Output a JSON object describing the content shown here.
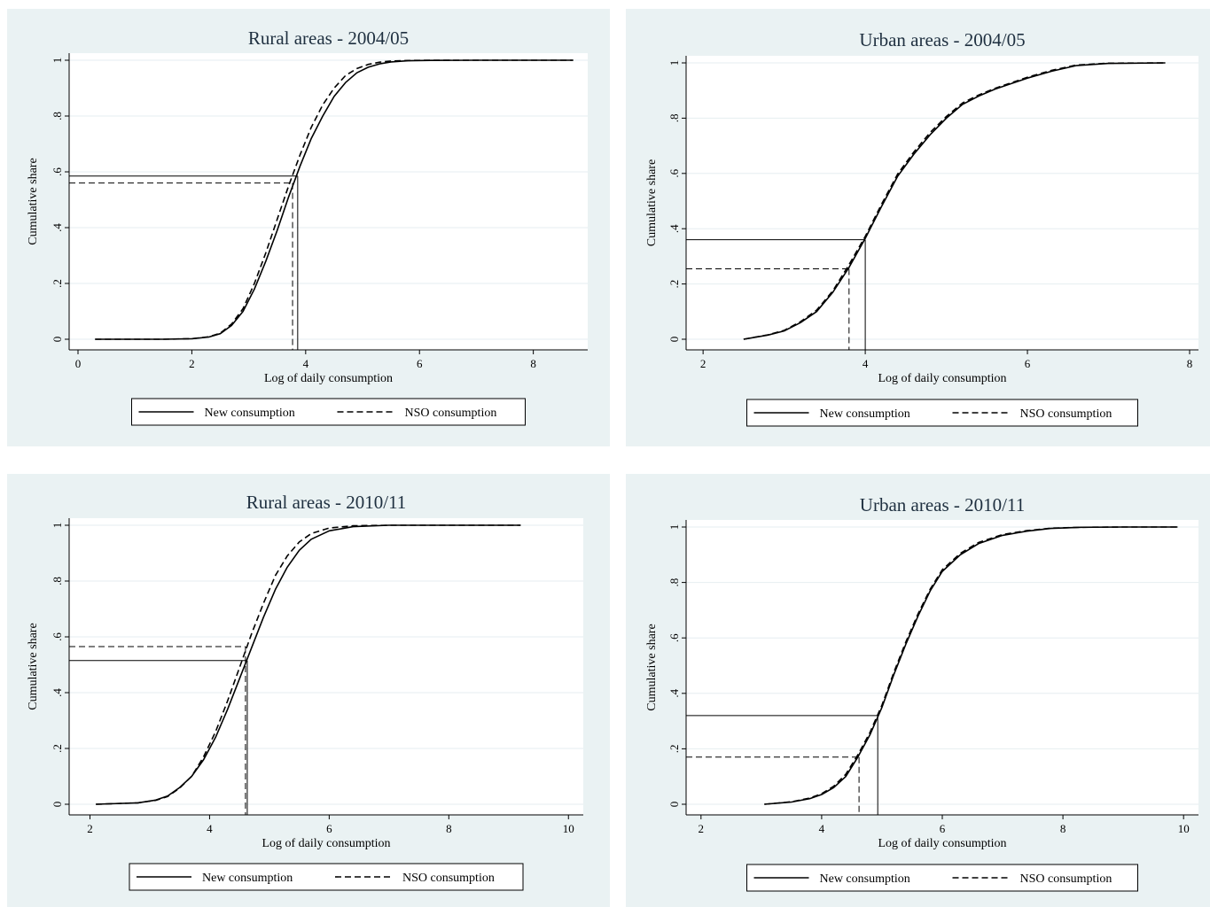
{
  "chart_data": [
    {
      "type": "line",
      "title": "Rural areas - 2004/05",
      "xlabel": "Log of daily consumption",
      "ylabel": "Cumulative share",
      "xlim": [
        0,
        8.8
      ],
      "ylim": [
        0,
        1
      ],
      "xticks": [
        0,
        2,
        4,
        6,
        8
      ],
      "xtick_labels": [
        "0",
        "2",
        "4",
        "6",
        "8"
      ],
      "yticks": [
        0,
        0.2,
        0.4,
        0.6,
        0.8,
        1
      ],
      "ytick_labels": [
        "0",
        ".2",
        ".4",
        ".6",
        ".8",
        "1"
      ],
      "grid": true,
      "legend_position": "bottom",
      "series": [
        {
          "name": "New consumption",
          "style": "solid",
          "x": [
            0.3,
            1.5,
            2.0,
            2.3,
            2.5,
            2.7,
            2.9,
            3.1,
            3.3,
            3.5,
            3.7,
            3.9,
            4.1,
            4.3,
            4.5,
            4.7,
            4.9,
            5.1,
            5.3,
            5.5,
            5.8,
            6.2,
            7.0,
            8.7
          ],
          "y": [
            0,
            0,
            0.002,
            0.008,
            0.02,
            0.05,
            0.1,
            0.18,
            0.28,
            0.39,
            0.51,
            0.62,
            0.72,
            0.8,
            0.87,
            0.92,
            0.955,
            0.975,
            0.987,
            0.994,
            0.998,
            0.9995,
            1,
            1
          ]
        },
        {
          "name": "NSO consumption",
          "style": "dashed",
          "x": [
            0.3,
            1.5,
            2.0,
            2.3,
            2.5,
            2.7,
            2.9,
            3.1,
            3.3,
            3.5,
            3.7,
            3.9,
            4.1,
            4.3,
            4.5,
            4.7,
            4.9,
            5.1,
            5.3,
            5.5,
            5.8,
            6.2,
            7.0,
            8.7
          ],
          "y": [
            0,
            0,
            0.002,
            0.009,
            0.022,
            0.055,
            0.11,
            0.2,
            0.31,
            0.43,
            0.55,
            0.66,
            0.76,
            0.84,
            0.9,
            0.945,
            0.97,
            0.985,
            0.993,
            0.997,
            0.999,
            1,
            1,
            1
          ]
        }
      ],
      "reference_lines": [
        {
          "series": "New consumption",
          "x": 3.86,
          "y": 0.585
        },
        {
          "series": "NSO consumption",
          "x": 3.77,
          "y": 0.56
        }
      ]
    },
    {
      "type": "line",
      "title": "Urban areas - 2004/05",
      "xlabel": "Log of daily consumption",
      "ylabel": "Cumulative share",
      "xlim": [
        1.9,
        8
      ],
      "ylim": [
        0,
        1
      ],
      "xticks": [
        2,
        4,
        6,
        8
      ],
      "xtick_labels": [
        "2",
        "4",
        "6",
        "8"
      ],
      "yticks": [
        0,
        0.2,
        0.4,
        0.6,
        0.8,
        1
      ],
      "ytick_labels": [
        "0",
        ".2",
        ".4",
        ".6",
        ".8",
        "1"
      ],
      "grid": true,
      "legend_position": "bottom",
      "series": [
        {
          "name": "New consumption",
          "style": "solid",
          "x": [
            2.5,
            2.8,
            3.0,
            3.2,
            3.4,
            3.6,
            3.8,
            4.0,
            4.2,
            4.4,
            4.6,
            4.8,
            5.0,
            5.2,
            5.4,
            5.6,
            5.8,
            6.0,
            6.3,
            6.6,
            7.0,
            7.7
          ],
          "y": [
            0,
            0.015,
            0.03,
            0.06,
            0.1,
            0.17,
            0.26,
            0.365,
            0.48,
            0.59,
            0.67,
            0.74,
            0.8,
            0.85,
            0.88,
            0.905,
            0.925,
            0.945,
            0.97,
            0.99,
            0.998,
            1
          ]
        },
        {
          "name": "NSO consumption",
          "style": "dashed",
          "x": [
            2.5,
            2.8,
            3.0,
            3.2,
            3.4,
            3.6,
            3.8,
            4.0,
            4.2,
            4.4,
            4.6,
            4.8,
            5.0,
            5.2,
            5.4,
            5.6,
            5.8,
            6.0,
            6.3,
            6.6,
            7.0,
            7.7
          ],
          "y": [
            0,
            0.016,
            0.032,
            0.063,
            0.105,
            0.175,
            0.27,
            0.372,
            0.488,
            0.598,
            0.678,
            0.748,
            0.806,
            0.855,
            0.884,
            0.908,
            0.928,
            0.948,
            0.973,
            0.992,
            0.999,
            1
          ]
        }
      ],
      "reference_lines": [
        {
          "series": "New consumption",
          "x": 4.0,
          "y": 0.36
        },
        {
          "series": "NSO consumption",
          "x": 3.8,
          "y": 0.255
        }
      ]
    },
    {
      "type": "line",
      "title": "Rural areas - 2010/11",
      "xlabel": "Log of daily consumption",
      "ylabel": "Cumulative share",
      "xlim": [
        1.8,
        10.1
      ],
      "ylim": [
        0,
        1
      ],
      "xticks": [
        2,
        4,
        6,
        8,
        10
      ],
      "xtick_labels": [
        "2",
        "4",
        "6",
        "8",
        "10"
      ],
      "yticks": [
        0,
        0.2,
        0.4,
        0.6,
        0.8,
        1
      ],
      "ytick_labels": [
        "0",
        ".2",
        ".4",
        ".6",
        ".8",
        "1"
      ],
      "grid": true,
      "legend_position": "bottom",
      "series": [
        {
          "name": "New consumption",
          "style": "solid",
          "x": [
            2.1,
            2.8,
            3.1,
            3.3,
            3.5,
            3.7,
            3.9,
            4.1,
            4.3,
            4.5,
            4.7,
            4.9,
            5.1,
            5.3,
            5.5,
            5.7,
            6.0,
            6.4,
            7.0,
            9.2
          ],
          "y": [
            0,
            0.005,
            0.015,
            0.03,
            0.06,
            0.1,
            0.16,
            0.24,
            0.34,
            0.45,
            0.56,
            0.67,
            0.77,
            0.85,
            0.91,
            0.95,
            0.98,
            0.995,
            1,
            1
          ]
        },
        {
          "name": "NSO consumption",
          "style": "dashed",
          "x": [
            2.1,
            2.8,
            3.1,
            3.3,
            3.5,
            3.7,
            3.9,
            4.1,
            4.3,
            4.5,
            4.7,
            4.9,
            5.1,
            5.3,
            5.5,
            5.7,
            6.0,
            6.4,
            7.0,
            9.2
          ],
          "y": [
            0,
            0.005,
            0.014,
            0.028,
            0.058,
            0.1,
            0.17,
            0.26,
            0.37,
            0.49,
            0.61,
            0.72,
            0.82,
            0.89,
            0.94,
            0.97,
            0.99,
            0.998,
            1,
            1
          ]
        }
      ],
      "reference_lines": [
        {
          "series": "New consumption",
          "x": 4.63,
          "y": 0.515
        },
        {
          "series": "NSO consumption",
          "x": 4.6,
          "y": 0.565
        }
      ]
    },
    {
      "type": "line",
      "title": "Urban areas - 2010/11",
      "xlabel": "Log of daily consumption",
      "ylabel": "Cumulative share",
      "xlim": [
        1.9,
        10.1
      ],
      "ylim": [
        0,
        1
      ],
      "xticks": [
        2,
        4,
        6,
        8,
        10
      ],
      "xtick_labels": [
        "2",
        "4",
        "6",
        "8",
        "10"
      ],
      "yticks": [
        0,
        0.2,
        0.4,
        0.6,
        0.8,
        1
      ],
      "ytick_labels": [
        "0",
        ".2",
        ".4",
        ".6",
        ".8",
        "1"
      ],
      "grid": true,
      "legend_position": "bottom",
      "series": [
        {
          "name": "New consumption",
          "style": "solid",
          "x": [
            3.05,
            3.5,
            3.8,
            4.0,
            4.2,
            4.4,
            4.6,
            4.8,
            5.0,
            5.2,
            5.4,
            5.6,
            5.8,
            6.0,
            6.3,
            6.6,
            7.0,
            7.4,
            7.8,
            8.3,
            9.0,
            9.9
          ],
          "y": [
            0,
            0.008,
            0.02,
            0.035,
            0.06,
            0.1,
            0.17,
            0.25,
            0.35,
            0.47,
            0.58,
            0.68,
            0.77,
            0.84,
            0.9,
            0.94,
            0.97,
            0.985,
            0.995,
            0.999,
            1,
            1
          ]
        },
        {
          "name": "NSO consumption",
          "style": "dashed",
          "x": [
            3.05,
            3.5,
            3.8,
            4.0,
            4.2,
            4.4,
            4.6,
            4.8,
            5.0,
            5.2,
            5.4,
            5.6,
            5.8,
            6.0,
            6.3,
            6.6,
            7.0,
            7.4,
            7.8,
            8.3,
            9.0,
            9.9
          ],
          "y": [
            0,
            0.009,
            0.022,
            0.038,
            0.065,
            0.108,
            0.178,
            0.258,
            0.358,
            0.478,
            0.588,
            0.688,
            0.776,
            0.846,
            0.905,
            0.944,
            0.973,
            0.987,
            0.996,
            0.999,
            1,
            1
          ]
        }
      ],
      "reference_lines": [
        {
          "series": "New consumption",
          "x": 4.93,
          "y": 0.32
        },
        {
          "series": "NSO consumption",
          "x": 4.62,
          "y": 0.17
        }
      ]
    }
  ]
}
